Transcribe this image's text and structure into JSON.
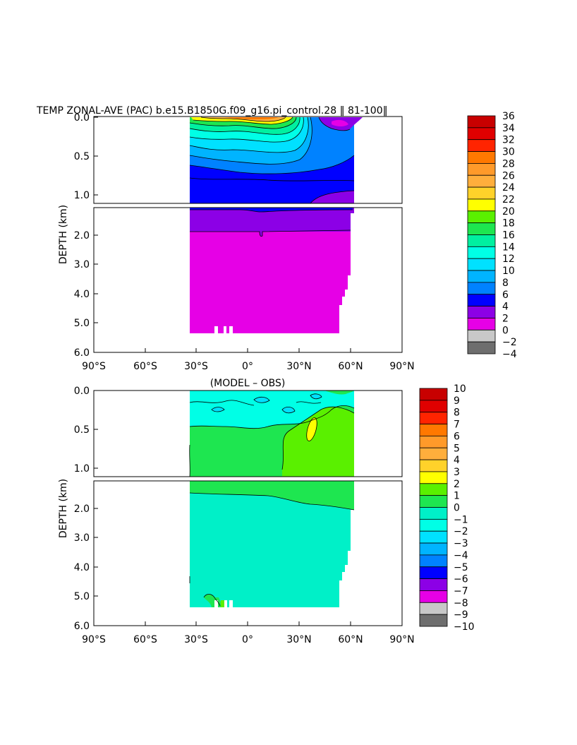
{
  "chart_data": [
    {
      "type": "heatmap",
      "title": "TEMP ZONAL-AVE (PAC) b.e15.B1850G.f09_g16.pi_control.28 ‖ 81-100‖",
      "ylabel": "DEPTH (km)",
      "xlabel": "",
      "x_ticks": [
        "90°S",
        "60°S",
        "30°S",
        "0°",
        "30°N",
        "60°N",
        "90°N"
      ],
      "y_ticks_upper": [
        "0.0",
        "0.5",
        "1.0"
      ],
      "y_ticks_lower": [
        "2.0",
        "3.0",
        "4.0",
        "5.0",
        "6.0"
      ],
      "xlim": [
        -90,
        90
      ],
      "ylim_km": [
        0,
        6
      ],
      "colorbar_labels": [
        "36",
        "34",
        "32",
        "30",
        "28",
        "26",
        "24",
        "22",
        "20",
        "18",
        "16",
        "14",
        "12",
        "10",
        "8",
        "6",
        "4",
        "2",
        "0",
        "-2",
        "-4"
      ],
      "colorbar_colors": [
        "#c80000",
        "#e00000",
        "#ff2400",
        "#ff7800",
        "#ff9a2a",
        "#ffae3c",
        "#ffd22a",
        "#ffff00",
        "#5af000",
        "#1ee650",
        "#00f0a0",
        "#00ffe6",
        "#00e1ff",
        "#00b4ff",
        "#0082ff",
        "#0000ff",
        "#8c00e6",
        "#e600e6",
        "#c8c8c8",
        "#6e6e6e"
      ]
    },
    {
      "type": "heatmap",
      "title": "(MODEL – OBS)",
      "ylabel": "DEPTH (km)",
      "xlabel": "",
      "x_ticks": [
        "90°S",
        "60°S",
        "30°S",
        "0°",
        "30°N",
        "60°N",
        "90°N"
      ],
      "y_ticks_upper": [
        "0.0",
        "0.5",
        "1.0"
      ],
      "y_ticks_lower": [
        "2.0",
        "3.0",
        "4.0",
        "5.0",
        "6.0"
      ],
      "xlim": [
        -90,
        90
      ],
      "ylim_km": [
        0,
        6
      ],
      "colorbar_labels": [
        "10",
        "9",
        "8",
        "7",
        "6",
        "5",
        "4",
        "3",
        "2",
        "1",
        "0",
        "-1",
        "-2",
        "-3",
        "-4",
        "-5",
        "-6",
        "-7",
        "-8",
        "-9",
        "-10"
      ],
      "colorbar_colors": [
        "#c80000",
        "#e00000",
        "#ff2400",
        "#ff7800",
        "#ff9a2a",
        "#ffae3c",
        "#ffd22a",
        "#ffff00",
        "#5af000",
        "#1ee650",
        "#00f0c8",
        "#00ffe6",
        "#00e1ff",
        "#00b4ff",
        "#0082ff",
        "#0000ff",
        "#8c00e6",
        "#e600e6",
        "#c8c8c8",
        "#6e6e6e"
      ]
    }
  ]
}
